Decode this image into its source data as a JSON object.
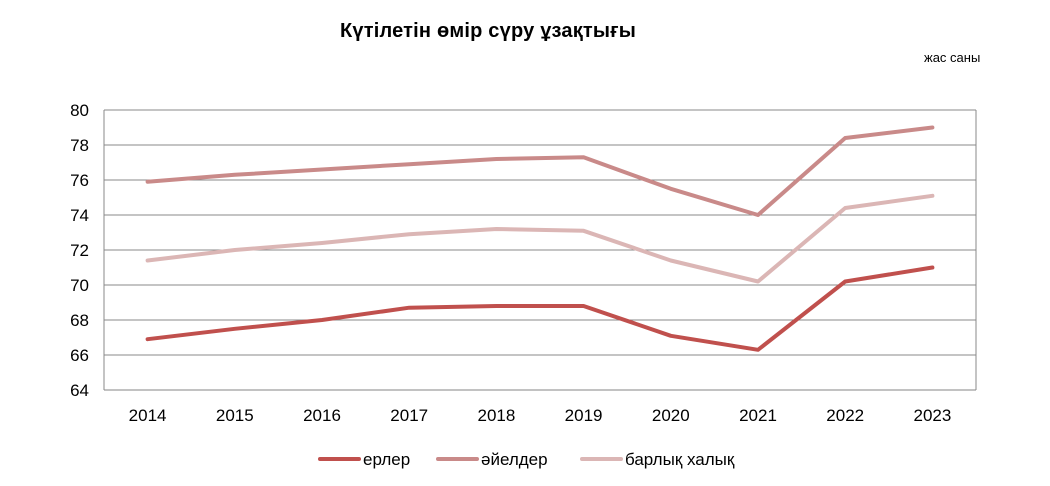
{
  "chart_data": {
    "type": "line",
    "title": "Күтілетін өмір сүру ұзақтығы",
    "unit_label": "жас саны",
    "xlabel": "",
    "ylabel": "",
    "categories": [
      "2014",
      "2015",
      "2016",
      "2017",
      "2018",
      "2019",
      "2020",
      "2021",
      "2022",
      "2023"
    ],
    "ylim": [
      64,
      80
    ],
    "yticks": [
      "64",
      "66",
      "68",
      "70",
      "72",
      "74",
      "76",
      "78",
      "80"
    ],
    "grid": true,
    "legend_position": "bottom",
    "series": [
      {
        "name": "ерлер",
        "color": "#c0504d",
        "values": [
          66.9,
          67.5,
          68.0,
          68.7,
          68.8,
          68.8,
          67.1,
          66.3,
          70.2,
          71.0
        ]
      },
      {
        "name": "әйелдер",
        "color": "#c98a89",
        "values": [
          75.9,
          76.3,
          76.6,
          76.9,
          77.2,
          77.3,
          75.5,
          74.0,
          78.4,
          79.0
        ]
      },
      {
        "name": "барлық халық",
        "color": "#dbb6b5",
        "values": [
          71.4,
          72.0,
          72.4,
          72.9,
          73.2,
          73.1,
          71.4,
          70.2,
          74.4,
          75.1
        ]
      }
    ]
  }
}
